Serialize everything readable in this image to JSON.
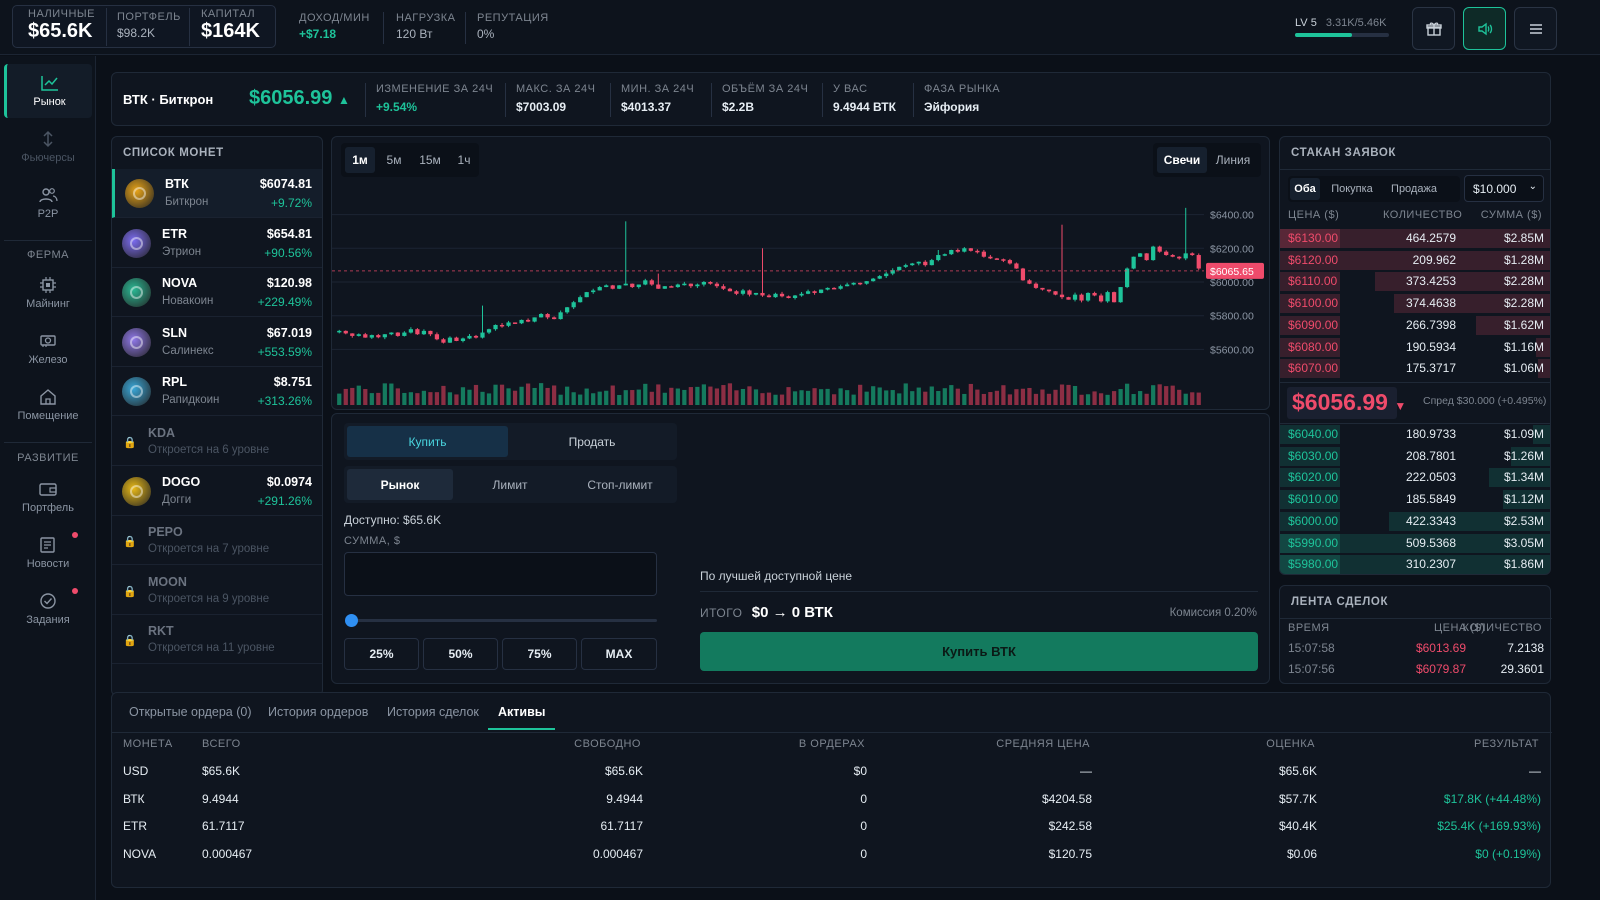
{
  "topbar": {
    "cash": {
      "label": "НАЛИЧНЫЕ",
      "value": "$65.6K"
    },
    "portfolio": {
      "label": "ПОРТФЕЛЬ",
      "value": "$98.2K"
    },
    "capital": {
      "label": "КАПИТАЛ",
      "value": "$164K"
    },
    "income": {
      "label": "ДОХОД/МИН",
      "value": "+$7.18"
    },
    "load": {
      "label": "НАГРУЗКА",
      "value": "120 Вт"
    },
    "reputation": {
      "label": "РЕПУТАЦИЯ",
      "value": "0%"
    },
    "level": {
      "label": "LV 5",
      "xp": "3.31K/5.46K",
      "progress": 0.606
    },
    "colors": {
      "accent": "#1ec39a",
      "down": "#ef4b6b"
    }
  },
  "sidebar": {
    "market": "Рынок",
    "futures": "Фьючерсы",
    "p2p": "P2P",
    "farm_section": "ФЕРМА",
    "mining": "Майнинг",
    "hardware": "Железо",
    "premises": "Помещение",
    "dev_section": "РАЗВИТИЕ",
    "portfolio": "Портфель",
    "news": "Новости",
    "tasks": "Задания"
  },
  "ticker": {
    "pair": "ВТК · Биткрон",
    "price": "$6056.99",
    "change": {
      "label": "ИЗМЕНЕНИЕ ЗА 24Ч",
      "value": "+9.54%"
    },
    "max": {
      "label": "МАКС. ЗА 24Ч",
      "value": "$7003.09"
    },
    "min": {
      "label": "МИН. ЗА 24Ч",
      "value": "$4013.37"
    },
    "volume": {
      "label": "ОБЪЁМ ЗА 24Ч",
      "value": "$2.2B"
    },
    "holding": {
      "label": "У ВАС",
      "value": "9.4944 ВТК"
    },
    "phase": {
      "label": "ФАЗА РЫНКА",
      "value": "Эйфория"
    }
  },
  "coins": {
    "title": "СПИСОК МОНЕТ",
    "items": [
      {
        "sym": "ВТК",
        "name": "Биткрон",
        "price": "$6074.81",
        "chg": "+9.72%",
        "color": "#e8a418"
      },
      {
        "sym": "ETR",
        "name": "Этрион",
        "price": "$654.81",
        "chg": "+90.56%",
        "color": "#7b6cf0"
      },
      {
        "sym": "NOVA",
        "name": "Новакоин",
        "price": "$120.98",
        "chg": "+229.49%",
        "color": "#2bb894"
      },
      {
        "sym": "SLN",
        "name": "Салинекс",
        "price": "$67.019",
        "chg": "+553.59%",
        "color": "#8f78e8"
      },
      {
        "sym": "RPL",
        "name": "Рапидкоин",
        "price": "$8.751",
        "chg": "+313.26%",
        "color": "#3aa7d8"
      }
    ],
    "locked": [
      {
        "sym": "KDA",
        "note": "Откроется на 6 уровне"
      },
      {
        "sym": "PEPO",
        "note": "Откроется на 7 уровне"
      },
      {
        "sym": "MOON",
        "note": "Откроется на 9 уровне"
      },
      {
        "sym": "RKT",
        "note": "Откроется на 11 уровне"
      }
    ],
    "dogo": {
      "sym": "DOGO",
      "name": "Догги",
      "price": "$0.0974",
      "chg": "+291.26%",
      "color": "#e8b918"
    }
  },
  "chart": {
    "timeframes": [
      "1м",
      "5м",
      "15м",
      "1ч"
    ],
    "modes": [
      "Свечи",
      "Линия"
    ]
  },
  "chart_data": {
    "type": "candlestick",
    "y_ticks": [
      "$6400.00",
      "$6200.00",
      "$6000.00",
      "$5800.00",
      "$5600.00"
    ],
    "y_range": [
      5460,
      6540
    ],
    "current_price_label": "$6065.65",
    "current_price": 6065.65,
    "closes": [
      5710,
      5695,
      5680,
      5690,
      5670,
      5685,
      5672,
      5690,
      5700,
      5680,
      5700,
      5720,
      5690,
      5710,
      5690,
      5660,
      5640,
      5670,
      5650,
      5665,
      5680,
      5670,
      5700,
      5720,
      5745,
      5740,
      5760,
      5755,
      5775,
      5765,
      5790,
      5810,
      5790,
      5780,
      5820,
      5850,
      5880,
      5910,
      5940,
      5950,
      5970,
      5980,
      5960,
      5980,
      5990,
      5970,
      5985,
      6010,
      5985,
      5960,
      5975,
      5970,
      5985,
      5990,
      5975,
      5985,
      6000,
      5990,
      5975,
      5960,
      5945,
      5930,
      5950,
      5925,
      5935,
      5920,
      5910,
      5930,
      5915,
      5905,
      5920,
      5930,
      5945,
      5935,
      5955,
      5965,
      5960,
      5975,
      5985,
      5995,
      5990,
      6005,
      6020,
      6035,
      6050,
      6070,
      6090,
      6100,
      6110,
      6120,
      6100,
      6130,
      6160,
      6165,
      6190,
      6180,
      6200,
      6185,
      6180,
      6150,
      6140,
      6135,
      6130,
      6110,
      6080,
      6010,
      5990,
      5965,
      5955,
      5945,
      5925,
      5910,
      5895,
      5925,
      5890,
      5935,
      5920,
      5885,
      5940,
      5880,
      5970,
      6080,
      6150,
      6170,
      6130,
      6210,
      6180,
      6160,
      6150,
      6140,
      6170,
      6160,
      6080
    ]
  },
  "order": {
    "sides": [
      "Купить",
      "Продать"
    ],
    "types": [
      "Рынок",
      "Лимит",
      "Стоп-лимит"
    ],
    "available": "Доступно: $65.6K",
    "amount_label": "СУММА, $",
    "amount_value": "",
    "percents": [
      "25%",
      "50%",
      "75%",
      "MAX"
    ],
    "best_price": "По лучшей доступной цене",
    "total_label": "ИТОГО",
    "total_value": "$0 → 0 ВТК",
    "fee": "Комиссия 0.20%",
    "submit": "Купить ВТК"
  },
  "orderbook": {
    "title": "СТАКАН ЗАЯВОК",
    "filters": [
      "Оба",
      "Покупка",
      "Продажа"
    ],
    "step": "$10.000",
    "headers": [
      "ЦЕНА ($)",
      "КОЛИЧЕСТВО",
      "СУММА ($)"
    ],
    "asks": [
      {
        "p": "$6130.00",
        "q": "464.2579",
        "t": "$2.85M",
        "d": 1.0
      },
      {
        "p": "$6120.00",
        "q": "209.962",
        "t": "$1.28M",
        "d": 0.78
      },
      {
        "p": "$6110.00",
        "q": "373.4253",
        "t": "$2.28M",
        "d": 0.65
      },
      {
        "p": "$6100.00",
        "q": "374.4638",
        "t": "$2.28M",
        "d": 0.58
      },
      {
        "p": "$6090.00",
        "q": "266.7398",
        "t": "$1.62M",
        "d": 0.28
      },
      {
        "p": "$6080.00",
        "q": "190.5934",
        "t": "$1.16M",
        "d": 0.06
      },
      {
        "p": "$6070.00",
        "q": "175.3717",
        "t": "$1.06M",
        "d": 0.05
      }
    ],
    "mid": "$6056.99",
    "spread": "Спред $30.000 (+0.495%)",
    "bids": [
      {
        "p": "$6040.00",
        "q": "180.9733",
        "t": "$1.09M",
        "d": 0.07
      },
      {
        "p": "$6030.00",
        "q": "208.7801",
        "t": "$1.26M",
        "d": 0.15
      },
      {
        "p": "$6020.00",
        "q": "222.0503",
        "t": "$1.34M",
        "d": 0.23
      },
      {
        "p": "$6010.00",
        "q": "185.5849",
        "t": "$1.12M",
        "d": 0.18
      },
      {
        "p": "$6000.00",
        "q": "422.3343",
        "t": "$2.53M",
        "d": 0.6
      },
      {
        "p": "$5990.00",
        "q": "509.5368",
        "t": "$3.05M",
        "d": 1.0
      },
      {
        "p": "$5980.00",
        "q": "310.2307",
        "t": "$1.86M",
        "d": 1.0
      }
    ]
  },
  "trades": {
    "title": "ЛЕНТА СДЕЛОК",
    "headers": [
      "ВРЕМЯ",
      "ЦЕНА ($)",
      "КОЛИЧЕСТВО"
    ],
    "rows": [
      {
        "time": "15:07:58",
        "price": "$6013.69",
        "qty": "7.2138"
      },
      {
        "time": "15:07:56",
        "price": "$6079.87",
        "qty": "29.3601"
      }
    ]
  },
  "bottom": {
    "tabs": [
      "Открытые ордера (0)",
      "История ордеров",
      "История сделок",
      "Активы"
    ],
    "headers": [
      "МОНЕТА",
      "ВСЕГО",
      "СВОБОДНО",
      "В ОРДЕРАХ",
      "СРЕДНЯЯ ЦЕНА",
      "ОЦЕНКА",
      "РЕЗУЛЬТАТ"
    ],
    "rows": [
      [
        "USD",
        "$65.6K",
        "$65.6K",
        "$0",
        "—",
        "$65.6K",
        "—"
      ],
      [
        "ВТК",
        "9.4944",
        "9.4944",
        "0",
        "$4204.58",
        "$57.7K",
        "$17.8K (+44.48%)"
      ],
      [
        "ETR",
        "61.7117",
        "61.7117",
        "0",
        "$242.58",
        "$40.4K",
        "$25.4K (+169.93%)"
      ],
      [
        "NOVA",
        "0.000467",
        "0.000467",
        "0",
        "$120.75",
        "$0.06",
        "$0 (+0.19%)"
      ]
    ]
  }
}
